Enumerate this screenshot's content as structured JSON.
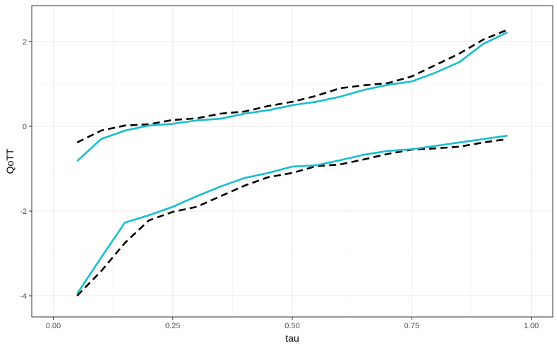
{
  "chart_data": {
    "type": "line",
    "xlabel": "tau",
    "ylabel": "QoTT",
    "xlim": [
      -0.045,
      1.045
    ],
    "ylim": [
      -4.5,
      2.85
    ],
    "x_ticks": [
      0.0,
      0.25,
      0.5,
      0.75,
      1.0
    ],
    "x_tick_labels": [
      "0.00",
      "0.25",
      "0.50",
      "0.75",
      "1.00"
    ],
    "y_ticks": [
      -4,
      -2,
      0,
      2
    ],
    "y_tick_labels": [
      "-4",
      "-2",
      "0",
      "2"
    ],
    "grid": true,
    "series": [
      {
        "style": "dashed",
        "color": "#000000",
        "x": [
          0.05,
          0.1,
          0.15,
          0.2,
          0.25,
          0.3,
          0.35,
          0.4,
          0.45,
          0.5,
          0.55,
          0.6,
          0.65,
          0.7,
          0.75,
          0.8,
          0.85,
          0.9,
          0.95
        ],
        "y": [
          -0.38,
          -0.1,
          0.02,
          0.05,
          0.15,
          0.19,
          0.3,
          0.35,
          0.48,
          0.58,
          0.72,
          0.9,
          0.97,
          1.02,
          1.18,
          1.45,
          1.72,
          2.05,
          2.28
        ]
      },
      {
        "style": "solid",
        "color": "#17becf",
        "x": [
          0.05,
          0.1,
          0.15,
          0.2,
          0.25,
          0.3,
          0.35,
          0.4,
          0.45,
          0.5,
          0.55,
          0.6,
          0.65,
          0.7,
          0.75,
          0.8,
          0.85,
          0.9,
          0.95
        ],
        "y": [
          -0.82,
          -0.3,
          -0.1,
          0.02,
          0.06,
          0.14,
          0.18,
          0.3,
          0.38,
          0.5,
          0.58,
          0.7,
          0.86,
          0.98,
          1.06,
          1.27,
          1.52,
          1.95,
          2.22
        ]
      },
      {
        "style": "dashed",
        "color": "#000000",
        "x": [
          0.05,
          0.1,
          0.15,
          0.2,
          0.25,
          0.3,
          0.35,
          0.4,
          0.45,
          0.5,
          0.55,
          0.6,
          0.65,
          0.7,
          0.75,
          0.8,
          0.85,
          0.9,
          0.95
        ],
        "y": [
          -4.0,
          -3.42,
          -2.75,
          -2.22,
          -2.02,
          -1.9,
          -1.65,
          -1.4,
          -1.2,
          -1.1,
          -0.94,
          -0.9,
          -0.78,
          -0.65,
          -0.55,
          -0.52,
          -0.48,
          -0.38,
          -0.3
        ]
      },
      {
        "style": "solid",
        "color": "#17becf",
        "x": [
          0.05,
          0.1,
          0.15,
          0.2,
          0.25,
          0.3,
          0.35,
          0.4,
          0.45,
          0.5,
          0.55,
          0.6,
          0.65,
          0.7,
          0.75,
          0.8,
          0.85,
          0.9,
          0.95
        ],
        "y": [
          -3.95,
          -3.1,
          -2.27,
          -2.1,
          -1.9,
          -1.65,
          -1.42,
          -1.22,
          -1.1,
          -0.95,
          -0.92,
          -0.8,
          -0.67,
          -0.58,
          -0.54,
          -0.46,
          -0.38,
          -0.3,
          -0.22
        ]
      }
    ]
  }
}
